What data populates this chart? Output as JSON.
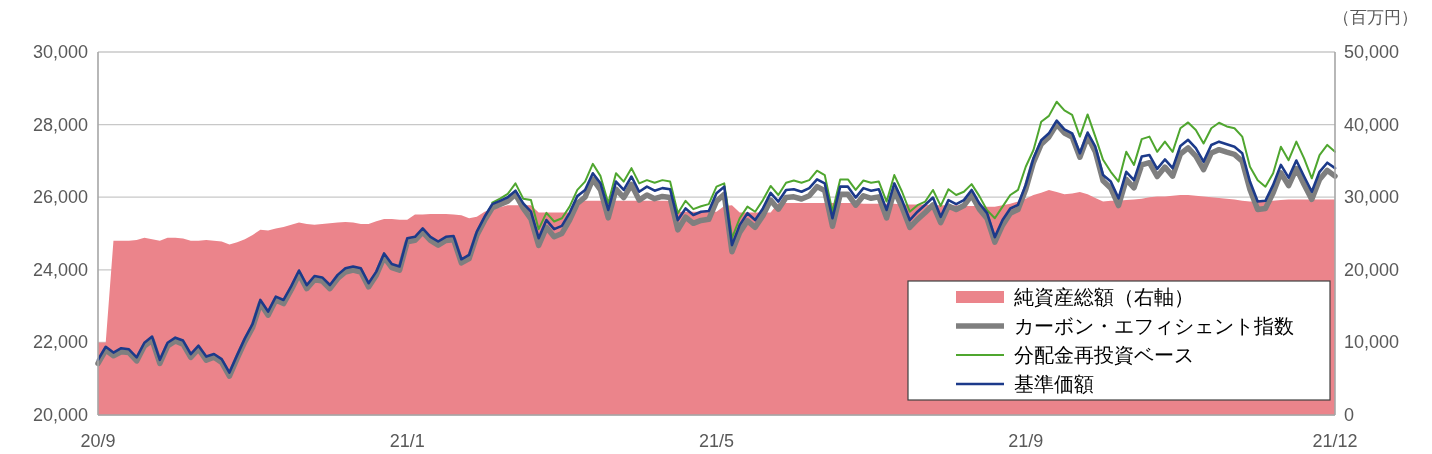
{
  "chart_data": {
    "type": "line",
    "categories": [
      "20/9",
      null,
      null,
      null,
      null,
      null,
      null,
      null,
      null,
      null,
      null,
      null,
      null,
      null,
      null,
      null,
      null,
      null,
      null,
      null,
      null,
      null,
      null,
      null,
      null,
      null,
      null,
      null,
      null,
      null,
      null,
      null,
      null,
      null,
      null,
      null,
      null,
      null,
      null,
      null,
      "21/1",
      null,
      null,
      null,
      null,
      null,
      null,
      null,
      null,
      null,
      null,
      null,
      null,
      null,
      null,
      null,
      null,
      null,
      null,
      null,
      null,
      null,
      null,
      null,
      null,
      null,
      null,
      null,
      null,
      null,
      null,
      null,
      null,
      null,
      null,
      null,
      null,
      null,
      null,
      null,
      "21/5",
      null,
      null,
      null,
      null,
      null,
      null,
      null,
      null,
      null,
      null,
      null,
      null,
      null,
      null,
      null,
      null,
      null,
      null,
      null,
      null,
      null,
      null,
      null,
      null,
      null,
      null,
      null,
      null,
      null,
      null,
      null,
      null,
      null,
      null,
      null,
      null,
      null,
      null,
      null,
      "21/9",
      null,
      null,
      null,
      null,
      null,
      null,
      null,
      null,
      null,
      null,
      null,
      null,
      null,
      null,
      null,
      null,
      null,
      null,
      null,
      null,
      null,
      null,
      null,
      null,
      null,
      null,
      null,
      null,
      null,
      null,
      null,
      null,
      null,
      null,
      null,
      null,
      null,
      null,
      null,
      "21/12"
    ],
    "ylim": [
      20000,
      30000
    ],
    "yticks": [
      {
        "value": 20000,
        "label": "20,000"
      },
      {
        "value": 22000,
        "label": "22,000"
      },
      {
        "value": 24000,
        "label": "24,000"
      },
      {
        "value": 26000,
        "label": "26,000"
      },
      {
        "value": 28000,
        "label": "28,000"
      },
      {
        "value": 30000,
        "label": "30,000"
      }
    ],
    "y2lim": [
      0,
      50000
    ],
    "y2ticks": [
      0,
      {
        "value": 10000,
        "label": "10,000"
      },
      {
        "value": 20000,
        "label": "20,000"
      },
      {
        "value": 30000,
        "label": "30,000"
      },
      {
        "value": 40000,
        "label": "40,000"
      },
      {
        "value": 50000,
        "label": "50,000"
      }
    ],
    "y2label": "（百万円）",
    "grid": "y",
    "legend": "bottom right",
    "series": [
      {
        "name": "純資産総額（右軸）",
        "type": "area",
        "axis": "y2",
        "color": "#eb848b",
        "values": [
          10000,
          10000,
          24000,
          24000,
          24000,
          24100,
          24400,
          24200,
          24000,
          24400,
          24400,
          24300,
          24000,
          24000,
          24100,
          24000,
          23900,
          23500,
          23800,
          24200,
          24800,
          25500,
          25400,
          25700,
          25900,
          26200,
          26500,
          26300,
          26200,
          26300,
          26400,
          26500,
          26600,
          26500,
          26300,
          26300,
          26700,
          27000,
          27000,
          26900,
          26900,
          27600,
          27600,
          27700,
          27700,
          27700,
          27600,
          27500,
          27100,
          27300,
          28000,
          28400,
          28600,
          28900,
          28900,
          28900,
          28900,
          27900,
          27900,
          27900,
          27900,
          27900,
          29400,
          29500,
          29500,
          29500,
          29500,
          29500,
          29500,
          29500,
          29500,
          29500,
          29500,
          29500,
          29500,
          28000,
          28000,
          28000,
          28000,
          28000,
          28000,
          28800,
          28900,
          27900,
          27900,
          27900,
          27900,
          27900,
          29200,
          29200,
          29200,
          29200,
          29200,
          29200,
          29200,
          29200,
          29200,
          29200,
          29200,
          29100,
          29100,
          29100,
          29100,
          29100,
          29000,
          29000,
          29000,
          29000,
          28900,
          28900,
          28900,
          28900,
          28800,
          28800,
          28800,
          28700,
          28700,
          28900,
          29100,
          29400,
          29800,
          30300,
          30600,
          31000,
          30700,
          30400,
          30500,
          30700,
          30400,
          29900,
          29400,
          29500,
          29500,
          29600,
          29700,
          29800,
          30000,
          30100,
          30100,
          30200,
          30300,
          30300,
          30200,
          30100,
          30000,
          29900,
          29800,
          29700,
          29500,
          29400,
          29400,
          29400,
          29500,
          29600,
          29700,
          29700,
          29700,
          29700,
          29700,
          29700,
          29700
        ]
      },
      {
        "name": "カーボン・エフィシェント指数",
        "color": "#7f7f7f",
        "values": [
          21420,
          21790,
          21630,
          21740,
          21720,
          21490,
          21900,
          22060,
          21420,
          21900,
          22040,
          21950,
          21590,
          21820,
          21510,
          21590,
          21450,
          21070,
          21560,
          22020,
          22410,
          23070,
          22750,
          23170,
          23070,
          23450,
          23880,
          23480,
          23730,
          23690,
          23480,
          23760,
          23940,
          23990,
          23940,
          23530,
          23850,
          24350,
          24060,
          23990,
          24770,
          24810,
          25040,
          24810,
          24680,
          24810,
          24830,
          24190,
          24310,
          24950,
          25360,
          25710,
          25800,
          25890,
          26080,
          25700,
          25400,
          24670,
          25170,
          24910,
          25000,
          25370,
          25830,
          26000,
          26500,
          26200,
          25430,
          26220,
          25990,
          26350,
          25920,
          26060,
          25960,
          26020,
          25990,
          25100,
          25450,
          25280,
          25360,
          25390,
          25890,
          26080,
          24500,
          25030,
          25350,
          25170,
          25490,
          25920,
          25670,
          25990,
          26010,
          25950,
          26040,
          26290,
          26180,
          25200,
          26080,
          26080,
          25780,
          26040,
          25970,
          26010,
          25430,
          26180,
          25720,
          25170,
          25390,
          25580,
          25790,
          25300,
          25760,
          25660,
          25770,
          26050,
          25670,
          25410,
          24760,
          25230,
          25560,
          25660,
          26220,
          26960,
          27460,
          27660,
          28010,
          27770,
          27660,
          27100,
          27670,
          27250,
          26450,
          26250,
          25770,
          26490,
          26260,
          26890,
          26950,
          26570,
          26830,
          26580,
          27190,
          27360,
          27130,
          26760,
          27220,
          27310,
          27240,
          27180,
          26990,
          26210,
          25660,
          25690,
          26120,
          26670,
          26320,
          26790,
          26350,
          25940,
          26490,
          26740,
          26580
        ]
      },
      {
        "name": "分配金再投資ベース",
        "color": "#4fa62f",
        "values": [
          null,
          null,
          null,
          null,
          null,
          null,
          null,
          null,
          null,
          null,
          null,
          null,
          null,
          null,
          null,
          null,
          null,
          null,
          null,
          null,
          null,
          null,
          null,
          null,
          null,
          null,
          null,
          null,
          null,
          null,
          null,
          null,
          null,
          null,
          null,
          null,
          null,
          null,
          null,
          null,
          null,
          null,
          null,
          null,
          null,
          null,
          null,
          null,
          null,
          null,
          null,
          25850,
          25960,
          26090,
          26380,
          25960,
          25920,
          25120,
          25570,
          25330,
          25420,
          25740,
          26200,
          26430,
          26920,
          26580,
          25830,
          26660,
          26430,
          26800,
          26380,
          26470,
          26400,
          26470,
          26430,
          25560,
          25900,
          25670,
          25750,
          25810,
          26290,
          26380,
          24870,
          25420,
          25740,
          25600,
          25920,
          26310,
          26060,
          26400,
          26460,
          26400,
          26470,
          26730,
          26610,
          25600,
          26490,
          26490,
          26200,
          26460,
          26400,
          26430,
          25880,
          26610,
          26150,
          25600,
          25780,
          25880,
          26200,
          25760,
          26220,
          26060,
          26150,
          26360,
          26030,
          25640,
          25420,
          25740,
          26060,
          26200,
          26840,
          27300,
          28080,
          28240,
          28630,
          28390,
          28270,
          27670,
          28280,
          27670,
          27030,
          26700,
          26430,
          27250,
          26890,
          27600,
          27670,
          27250,
          27530,
          27250,
          27900,
          28060,
          27850,
          27480,
          27900,
          28050,
          27950,
          27900,
          27670,
          26840,
          26470,
          26290,
          26660,
          27390,
          27020,
          27530,
          27070,
          26520,
          27160,
          27440,
          27250
        ]
      },
      {
        "name": "基準価額",
        "color": "#1c3a8a",
        "values": [
          21520,
          21880,
          21720,
          21840,
          21810,
          21590,
          21990,
          22160,
          21520,
          21990,
          22130,
          22050,
          21680,
          21910,
          21610,
          21680,
          21540,
          21170,
          21650,
          22110,
          22510,
          23170,
          22850,
          23260,
          23170,
          23550,
          23980,
          23580,
          23830,
          23790,
          23580,
          23860,
          24040,
          24090,
          24040,
          23630,
          23950,
          24450,
          24160,
          24090,
          24870,
          24910,
          25140,
          24910,
          24780,
          24910,
          24930,
          24290,
          24410,
          25050,
          25460,
          25810,
          25900,
          26000,
          26180,
          25830,
          25600,
          24870,
          25370,
          25120,
          25210,
          25570,
          26030,
          26200,
          26660,
          26380,
          25650,
          26430,
          26200,
          26570,
          26150,
          26290,
          26180,
          26250,
          26220,
          25370,
          25690,
          25510,
          25600,
          25620,
          26110,
          26290,
          24680,
          25230,
          25560,
          25370,
          25690,
          26120,
          25880,
          26200,
          26220,
          26150,
          26250,
          26490,
          26380,
          25420,
          26290,
          26290,
          25990,
          26250,
          26180,
          26220,
          25650,
          26380,
          25920,
          25370,
          25600,
          25790,
          25990,
          25460,
          25920,
          25810,
          25920,
          26200,
          25830,
          25560,
          24900,
          25370,
          25690,
          25790,
          26340,
          27070,
          27570,
          27760,
          28110,
          27870,
          27760,
          27210,
          27780,
          27390,
          26610,
          26430,
          25970,
          26700,
          26470,
          27120,
          27160,
          26780,
          27040,
          26800,
          27410,
          27580,
          27350,
          26980,
          27440,
          27530,
          27460,
          27390,
          27210,
          26430,
          25880,
          25900,
          26340,
          26890,
          26540,
          27010,
          26570,
          26150,
          26700,
          26950,
          26800
        ]
      }
    ]
  }
}
